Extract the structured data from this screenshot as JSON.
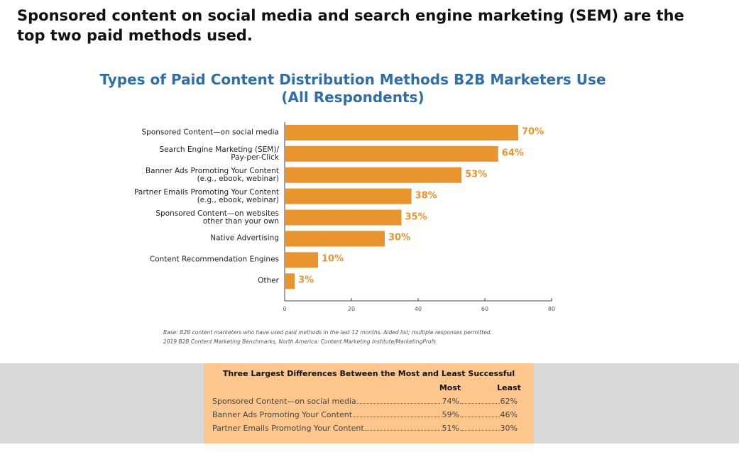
{
  "heading": "Sponsored content on social media and search engine marketing (SEM) are the top two paid methods used.",
  "chart_data": {
    "type": "bar",
    "orientation": "horizontal",
    "title": "Types of Paid Content Distribution Methods B2B Marketers Use\n(All Respondents)",
    "categories": [
      "Sponsored Content—on social media",
      "Search Engine Marketing (SEM)/\nPay-per-Click",
      "Banner Ads Promoting Your Content\n(e.g., ebook, webinar)",
      "Partner Emails Promoting Your Content\n(e.g., ebook, webinar)",
      "Sponsored Content—on websites\nother than your own",
      "Native Advertising",
      "Content Recommendation Engines",
      "Other"
    ],
    "values": [
      70,
      64,
      53,
      38,
      35,
      30,
      10,
      3
    ],
    "value_labels": [
      "70%",
      "64%",
      "53%",
      "38%",
      "35%",
      "30%",
      "10%",
      "3%"
    ],
    "color": "#e8942f",
    "xlim": [
      0,
      80
    ],
    "xticks": [
      0,
      20,
      40,
      60,
      80
    ]
  },
  "footnote": [
    "Base: B2B content marketers who have used paid methods in the last 12 months. Aided list; multiple responses permitted.",
    "2019 B2B Content Marketing Benchmarks, North America: Content Marketing Institute/MarketingProfs"
  ],
  "table": {
    "title": "Three Largest Differences Between the Most and Least Successful",
    "columns": [
      "Most",
      "Least"
    ],
    "rows": [
      [
        "Sponsored Content—on social media",
        "74%",
        "62%"
      ],
      [
        "Banner Ads Promoting Your Content",
        "59%",
        "46%"
      ],
      [
        "Partner Emails Promoting Your Content",
        "51%",
        "30%"
      ]
    ]
  }
}
